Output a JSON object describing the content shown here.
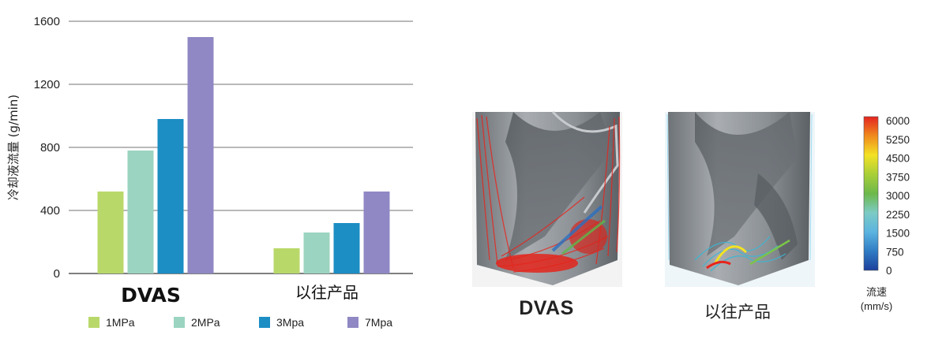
{
  "chart_data": {
    "type": "bar",
    "categories": [
      "DVAS",
      "以往产品"
    ],
    "series": [
      {
        "name": "1MPa",
        "values": [
          520,
          160
        ]
      },
      {
        "name": "2MPa",
        "values": [
          780,
          260
        ]
      },
      {
        "name": "3Mpa",
        "values": [
          980,
          320
        ]
      },
      {
        "name": "7Mpa",
        "values": [
          1500,
          520
        ]
      }
    ],
    "ylabel": "冷却液流量 (g/min)",
    "ylim": [
      0,
      1600
    ],
    "yticks": [
      0,
      400,
      800,
      1200,
      1600
    ],
    "grid": true,
    "legend_position": "bottom",
    "colors": [
      "#b9d86a",
      "#9bd4c0",
      "#1c8ec4",
      "#8f88c4"
    ]
  },
  "simulation": {
    "labels": [
      "DVAS",
      "以往产品"
    ],
    "colorbar": {
      "title": "流速",
      "unit": "(mm/s)",
      "ticks": [
        "6000",
        "5250",
        "4500",
        "3750",
        "3000",
        "2250",
        "1500",
        "750",
        "0"
      ],
      "colors": [
        "#e52421",
        "#f08a1c",
        "#f3e224",
        "#a9cf38",
        "#6cb84a",
        "#7ccbc4",
        "#5bb4e0",
        "#2f7cc4",
        "#1d3f9c"
      ]
    }
  }
}
